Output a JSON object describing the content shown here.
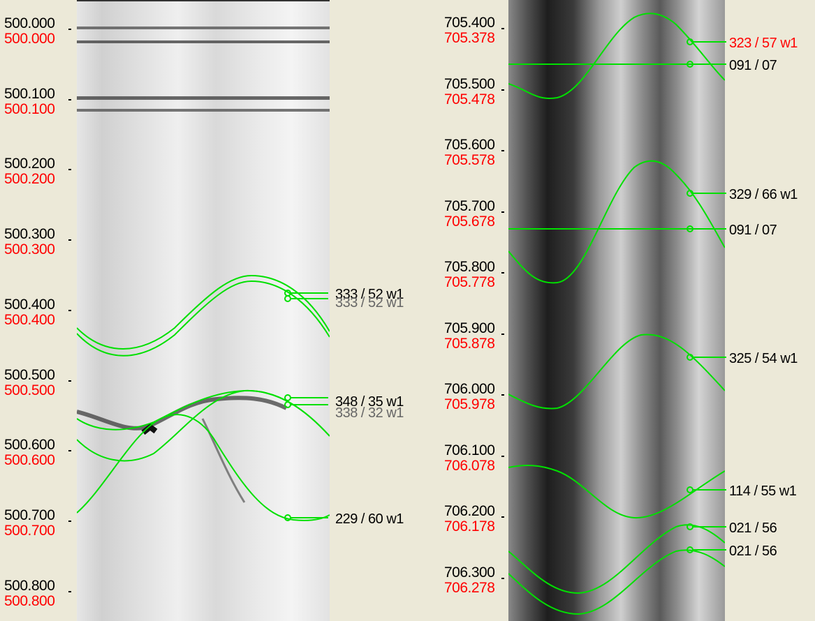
{
  "left_track": {
    "depths": [
      {
        "measured": "500.000",
        "true": "500.000"
      },
      {
        "measured": "500.100",
        "true": "500.100"
      },
      {
        "measured": "500.200",
        "true": "500.200"
      },
      {
        "measured": "500.300",
        "true": "500.300"
      },
      {
        "measured": "500.400",
        "true": "500.400"
      },
      {
        "measured": "500.500",
        "true": "500.500"
      },
      {
        "measured": "500.600",
        "true": "500.600"
      },
      {
        "measured": "500.700",
        "true": "500.700"
      },
      {
        "measured": "500.800",
        "true": "500.800"
      }
    ],
    "annotations": [
      {
        "text": "333 / 52 w1"
      },
      {
        "text": "333 / 52 w1"
      },
      {
        "text": "348 / 35 w1"
      },
      {
        "text": "338 / 32 w1"
      },
      {
        "text": "229 / 60 w1"
      }
    ]
  },
  "right_track": {
    "depths": [
      {
        "measured": "705.400",
        "true": "705.378"
      },
      {
        "measured": "705.500",
        "true": "705.478"
      },
      {
        "measured": "705.600",
        "true": "705.578"
      },
      {
        "measured": "705.700",
        "true": "705.678"
      },
      {
        "measured": "705.800",
        "true": "705.778"
      },
      {
        "measured": "705.900",
        "true": "705.878"
      },
      {
        "measured": "706.000",
        "true": "705.978"
      },
      {
        "measured": "706.100",
        "true": "706.078"
      },
      {
        "measured": "706.200",
        "true": "706.178"
      },
      {
        "measured": "706.300",
        "true": "706.278"
      }
    ],
    "annotations": [
      {
        "text": "323 / 57 w1",
        "color": "#ff0000"
      },
      {
        "text": "091 / 07"
      },
      {
        "text": "329 / 66 w1"
      },
      {
        "text": "091 / 07"
      },
      {
        "text": "325 / 54 w1"
      },
      {
        "text": "114 / 55 w1"
      },
      {
        "text": "021 / 56"
      },
      {
        "text": "021 / 56"
      }
    ]
  },
  "colors": {
    "background": "#ece9d8",
    "sinusoid": "#00e000",
    "depth_black": "#000000",
    "depth_red": "#ff0000"
  }
}
